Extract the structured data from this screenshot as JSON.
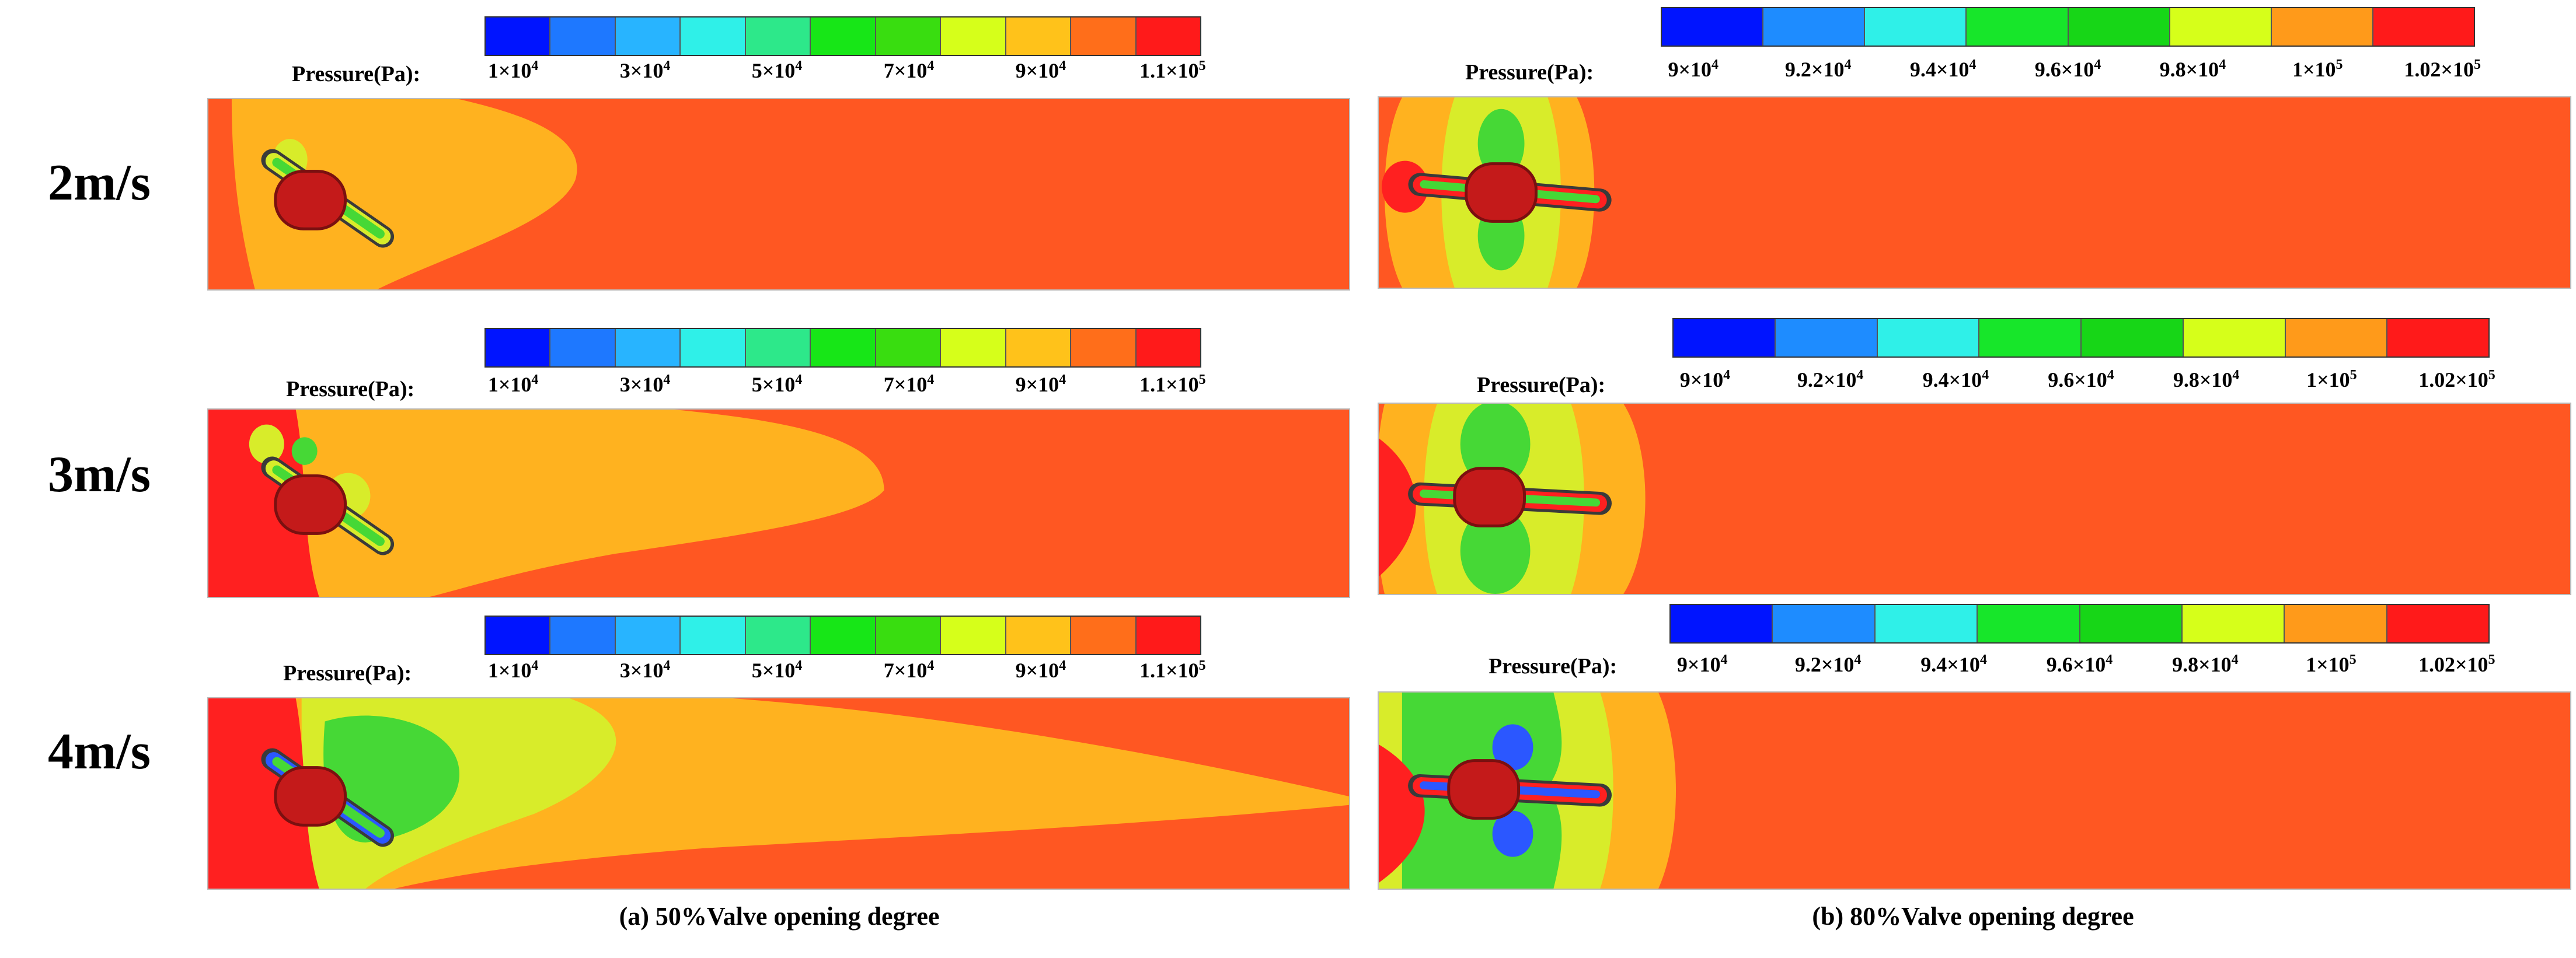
{
  "rows": [
    {
      "speed": "2m/s"
    },
    {
      "speed": "3m/s"
    },
    {
      "speed": "4m/s"
    }
  ],
  "legend_a": {
    "label": "Pressure(Pa):",
    "colors": [
      "#0014ff",
      "#1e78ff",
      "#28b4ff",
      "#2ff0e8",
      "#2de88a",
      "#17e617",
      "#39dd10",
      "#d6ff1a",
      "#ffc21a",
      "#ff6e1a",
      "#ff1a1a"
    ],
    "ticks": [
      {
        "base": "1×10",
        "exp": "4"
      },
      {
        "base": "3×10",
        "exp": "4"
      },
      {
        "base": "5×10",
        "exp": "4"
      },
      {
        "base": "7×10",
        "exp": "4"
      },
      {
        "base": "9×10",
        "exp": "4"
      },
      {
        "base": "1.1×10",
        "exp": "5"
      }
    ]
  },
  "legend_b": {
    "label": "Pressure(Pa):",
    "colors": [
      "#0014ff",
      "#1e8cff",
      "#2ff0e8",
      "#17e62a",
      "#17d617",
      "#d6ff1a",
      "#ff9a1a",
      "#ff1a1a"
    ],
    "ticks": [
      {
        "base": "9×10",
        "exp": "4"
      },
      {
        "base": "9.2×10",
        "exp": "4"
      },
      {
        "base": "9.4×10",
        "exp": "4"
      },
      {
        "base": "9.6×10",
        "exp": "4"
      },
      {
        "base": "9.8×10",
        "exp": "4"
      },
      {
        "base": "1×10",
        "exp": "5"
      },
      {
        "base": "1.02×10",
        "exp": "5"
      }
    ]
  },
  "captions": {
    "a": "(a) 50%Valve opening degree",
    "b": "(b) 80%Valve opening degree"
  },
  "field_colors": {
    "background": "#ff5722",
    "high": "#ff2020",
    "mid_high": "#ffb21f",
    "mid": "#d8ec2a",
    "low_mid": "#46d836",
    "low": "#2b57ff"
  }
}
